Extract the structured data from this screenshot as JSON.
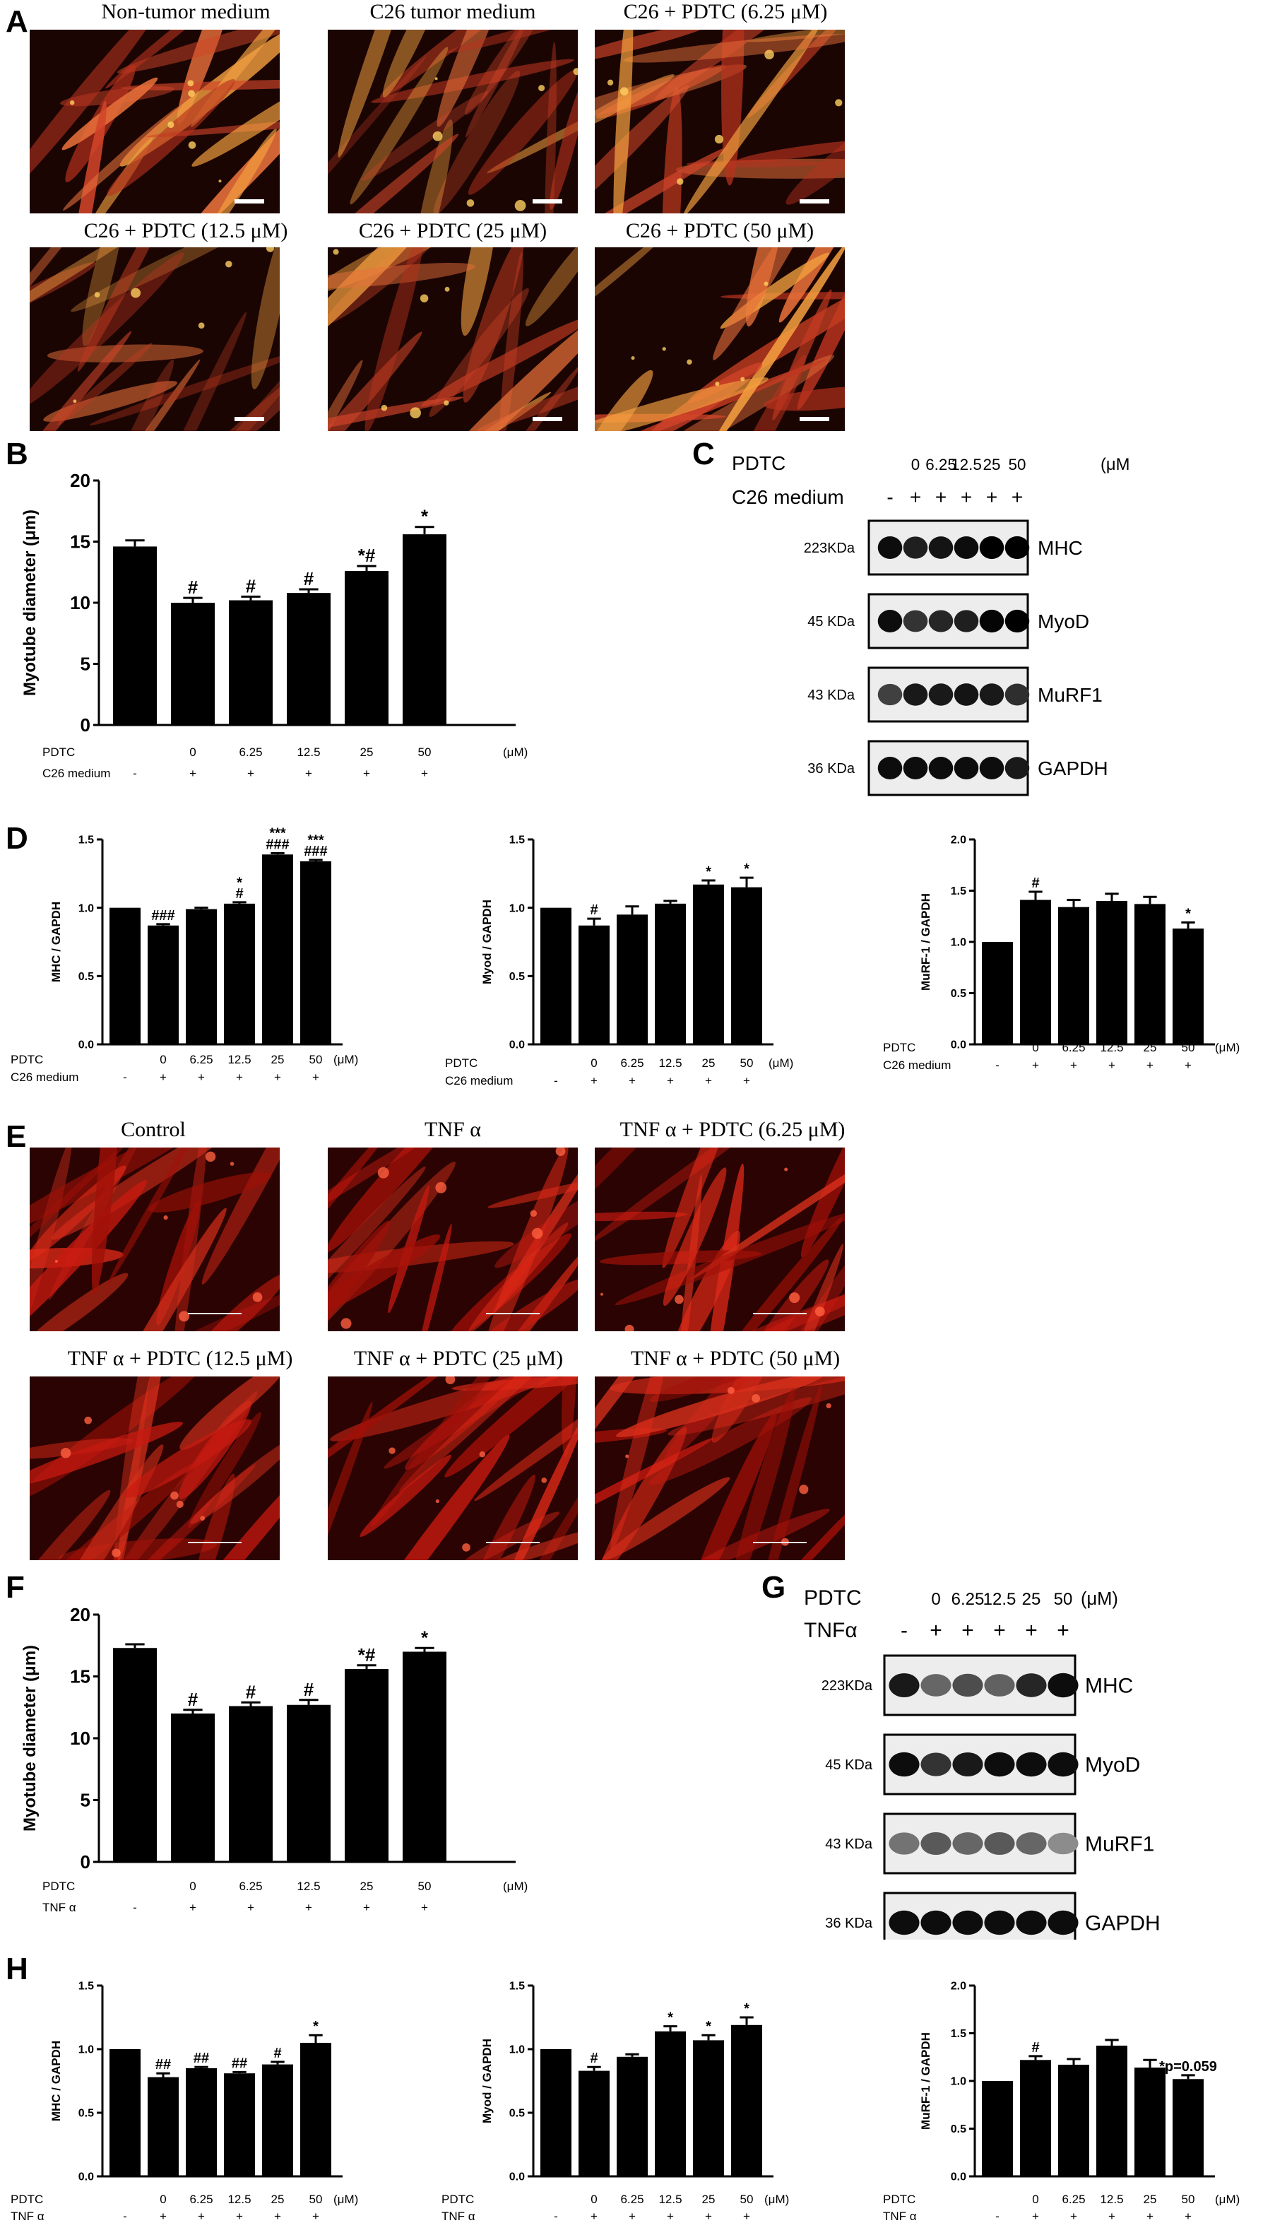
{
  "panels": {
    "A": "A",
    "B": "B",
    "C": "C",
    "D": "D",
    "E": "E",
    "F": "F",
    "G": "G",
    "H": "H"
  },
  "micrographs_A": [
    {
      "label": "Non-tumor  medium",
      "tone": "bright"
    },
    {
      "label": "C26 tumor medium",
      "tone": "dim"
    },
    {
      "label": "C26 + PDTC  (6.25 μM)",
      "tone": "mid"
    },
    {
      "label": "C26 + PDTC (12.5 μM)",
      "tone": "dim"
    },
    {
      "label": "C26 + PDTC (25 μM)",
      "tone": "mid"
    },
    {
      "label": "C26  + PDTC (50 μM)",
      "tone": "bright"
    }
  ],
  "micrographs_E": [
    {
      "label": "Control"
    },
    {
      "label": "TNF α"
    },
    {
      "label": "TNF α + PDTC (6.25 μM)"
    },
    {
      "label": "TNF α + PDTC (12.5 μM)"
    },
    {
      "label": "TNF α + PDTC (25 μM)"
    },
    {
      "label": "TNF α  + PDTC (50 μM)"
    }
  ],
  "colors": {
    "bar": "#000000",
    "micro_A_bg": "#1a0503",
    "micro_E_bg": "#2a0302"
  },
  "chart_data": [
    {
      "id": "B",
      "type": "bar",
      "ylabel": "Myotube diameter (μm)",
      "ylim": [
        0,
        20
      ],
      "yticks": [
        0,
        5,
        10,
        15,
        20
      ],
      "categories": [
        "-",
        "0",
        "6.25",
        "12.5",
        "25",
        "50"
      ],
      "values": [
        14.6,
        10.0,
        10.2,
        10.8,
        12.6,
        15.6
      ],
      "errors": [
        0.5,
        0.4,
        0.3,
        0.3,
        0.4,
        0.6
      ],
      "annotations": [
        "",
        "#",
        "#",
        "#",
        "*#",
        "*"
      ],
      "row1": {
        "label": "PDTC",
        "values": [
          "",
          "0",
          "6.25",
          "12.5",
          "25",
          "50"
        ],
        "unit": "(μM)"
      },
      "row2": {
        "label": "C26 medium",
        "values": [
          "-",
          "+",
          "+",
          "+",
          "+",
          "+"
        ]
      }
    },
    {
      "id": "D1",
      "type": "bar",
      "ylabel": "MHC / GAPDH",
      "ylim": [
        0,
        1.5
      ],
      "yticks": [
        0.0,
        0.5,
        1.0,
        1.5
      ],
      "categories": [
        "-",
        "0",
        "6.25",
        "12.5",
        "25",
        "50"
      ],
      "values": [
        1.0,
        0.87,
        0.99,
        1.03,
        1.39,
        1.34
      ],
      "errors": [
        0.0,
        0.01,
        0.01,
        0.01,
        0.01,
        0.01
      ],
      "annotations": [
        "",
        "###",
        "",
        "*\n#",
        "***\n###",
        "***\n###"
      ],
      "row1": {
        "label": "PDTC",
        "values": [
          "",
          "0",
          "6.25",
          "12.5",
          "25",
          "50"
        ],
        "unit": "(μM)"
      },
      "row2": {
        "label": "C26 medium",
        "values": [
          "-",
          "+",
          "+",
          "+",
          "+",
          "+"
        ]
      }
    },
    {
      "id": "D2",
      "type": "bar",
      "ylabel": "Myod / GAPDH",
      "ylim": [
        0,
        1.5
      ],
      "yticks": [
        0.0,
        0.5,
        1.0,
        1.5
      ],
      "categories": [
        "-",
        "0",
        "6.25",
        "12.5",
        "25",
        "50"
      ],
      "values": [
        1.0,
        0.87,
        0.95,
        1.03,
        1.17,
        1.15
      ],
      "errors": [
        0.0,
        0.05,
        0.06,
        0.02,
        0.03,
        0.07
      ],
      "annotations": [
        "",
        "#",
        "",
        "",
        "*",
        "*"
      ],
      "row1": {
        "label": "PDTC",
        "values": [
          "",
          "0",
          "6.25",
          "12.5",
          "25",
          "50"
        ],
        "unit": "(μM)"
      },
      "row2": {
        "label": "C26 medium",
        "values": [
          "-",
          "+",
          "+",
          "+",
          "+",
          "+"
        ]
      }
    },
    {
      "id": "D3",
      "type": "bar",
      "ylabel": "MuRF-1 / GAPDH",
      "ylim": [
        0,
        2.0
      ],
      "yticks": [
        0.0,
        0.5,
        1.0,
        1.5,
        2.0
      ],
      "categories": [
        "-",
        "0",
        "6.25",
        "12.5",
        "25",
        "50"
      ],
      "values": [
        1.0,
        1.41,
        1.34,
        1.4,
        1.37,
        1.13
      ],
      "errors": [
        0.0,
        0.08,
        0.07,
        0.07,
        0.07,
        0.06
      ],
      "annotations": [
        "",
        "#",
        "",
        "",
        "",
        "*"
      ],
      "row1": {
        "label": "PDTC",
        "values": [
          "",
          "0",
          "6.25",
          "12.5",
          "25",
          "50"
        ],
        "unit": "(μM)"
      },
      "row2": {
        "label": "C26 medium",
        "values": [
          "-",
          "+",
          "+",
          "+",
          "+",
          "+"
        ]
      }
    },
    {
      "id": "F",
      "type": "bar",
      "ylabel": "Myotube diameter (μm)",
      "ylim": [
        0,
        20
      ],
      "yticks": [
        0,
        5,
        10,
        15,
        20
      ],
      "categories": [
        "-",
        "0",
        "6.25",
        "12.5",
        "25",
        "50"
      ],
      "values": [
        17.3,
        12.0,
        12.6,
        12.7,
        15.6,
        17.0
      ],
      "errors": [
        0.3,
        0.3,
        0.3,
        0.4,
        0.3,
        0.3
      ],
      "annotations": [
        "",
        "#",
        "#",
        "#",
        "*#",
        "*"
      ],
      "row1": {
        "label": "PDTC",
        "values": [
          "",
          "0",
          "6.25",
          "12.5",
          "25",
          "50"
        ],
        "unit": "(μM)"
      },
      "row2": {
        "label": "TNF α",
        "values": [
          "-",
          "+",
          "+",
          "+",
          "+",
          "+"
        ]
      }
    },
    {
      "id": "H1",
      "type": "bar",
      "ylabel": "MHC / GAPDH",
      "ylim": [
        0,
        1.5
      ],
      "yticks": [
        0.0,
        0.5,
        1.0,
        1.5
      ],
      "categories": [
        "-",
        "0",
        "6.25",
        "12.5",
        "25",
        "50"
      ],
      "values": [
        1.0,
        0.78,
        0.85,
        0.81,
        0.88,
        1.05
      ],
      "errors": [
        0.0,
        0.03,
        0.01,
        0.01,
        0.02,
        0.06
      ],
      "annotations": [
        "",
        "##",
        "##",
        "##",
        "#",
        "*"
      ],
      "row1": {
        "label": "PDTC",
        "values": [
          "",
          "0",
          "6.25",
          "12.5",
          "25",
          "50"
        ],
        "unit": "(μM)"
      },
      "row2": {
        "label": "TNF α",
        "values": [
          "-",
          "+",
          "+",
          "+",
          "+",
          "+"
        ]
      }
    },
    {
      "id": "H2",
      "type": "bar",
      "ylabel": "Myod / GAPDH",
      "ylim": [
        0,
        1.5
      ],
      "yticks": [
        0.0,
        0.5,
        1.0,
        1.5
      ],
      "categories": [
        "-",
        "0",
        "6.25",
        "12.5",
        "25",
        "50"
      ],
      "values": [
        1.0,
        0.83,
        0.94,
        1.14,
        1.07,
        1.19
      ],
      "errors": [
        0.0,
        0.03,
        0.02,
        0.04,
        0.04,
        0.06
      ],
      "annotations": [
        "",
        "#",
        "",
        "*",
        "*",
        "*"
      ],
      "row1": {
        "label": "PDTC",
        "values": [
          "",
          "0",
          "6.25",
          "12.5",
          "25",
          "50"
        ],
        "unit": "(μM)"
      },
      "row2": {
        "label": "TNF α",
        "values": [
          "-",
          "+",
          "+",
          "+",
          "+",
          "+"
        ]
      }
    },
    {
      "id": "H3",
      "type": "bar",
      "ylabel": "MuRF-1 / GAPDH",
      "ylim": [
        0,
        2.0
      ],
      "yticks": [
        0.0,
        0.5,
        1.0,
        1.5,
        2.0
      ],
      "categories": [
        "-",
        "0",
        "6.25",
        "12.5",
        "25",
        "50"
      ],
      "values": [
        1.0,
        1.22,
        1.17,
        1.37,
        1.14,
        1.02
      ],
      "errors": [
        0.0,
        0.04,
        0.06,
        0.06,
        0.08,
        0.04
      ],
      "annotations": [
        "",
        "#",
        "",
        "",
        "",
        "*p=0.059"
      ],
      "row1": {
        "label": "PDTC",
        "values": [
          "",
          "0",
          "6.25",
          "12.5",
          "25",
          "50"
        ],
        "unit": "(μM)"
      },
      "row2": {
        "label": "TNF α",
        "values": [
          "-",
          "+",
          "+",
          "+",
          "+",
          "+"
        ]
      }
    }
  ],
  "western_C": {
    "row1_label": "PDTC",
    "row1_values": [
      "",
      "0",
      "6.25",
      "12.5",
      "25",
      "50"
    ],
    "row1_unit": "(μM)",
    "row2_label": "C26 medium",
    "row2_values": [
      "-",
      "+",
      "+",
      "+",
      "+",
      "+"
    ],
    "blots": [
      {
        "size": "223KDa",
        "protein": "MHC",
        "intensity": [
          0.95,
          0.88,
          0.92,
          0.95,
          1.0,
          1.0
        ]
      },
      {
        "size": "45 KDa",
        "protein": "MyoD",
        "intensity": [
          0.95,
          0.8,
          0.85,
          0.88,
          0.98,
          1.0
        ]
      },
      {
        "size": "43 KDa",
        "protein": "MuRF1",
        "intensity": [
          0.75,
          0.9,
          0.9,
          0.92,
          0.9,
          0.82
        ]
      },
      {
        "size": "36 KDa",
        "protein": "GAPDH",
        "intensity": [
          0.95,
          0.95,
          0.95,
          0.95,
          0.95,
          0.9
        ]
      }
    ]
  },
  "western_G": {
    "row1_label": "PDTC",
    "row1_values": [
      "",
      "0",
      "6.25",
      "12.5",
      "25",
      "50"
    ],
    "row1_unit": "(μM)",
    "row2_label": "TNFα",
    "row2_values": [
      "-",
      "+",
      "+",
      "+",
      "+",
      "+"
    ],
    "blots": [
      {
        "size": "223KDa",
        "protein": "MHC",
        "intensity": [
          0.9,
          0.6,
          0.7,
          0.62,
          0.85,
          0.95
        ]
      },
      {
        "size": "45 KDa",
        "protein": "MyoD",
        "intensity": [
          0.95,
          0.8,
          0.9,
          0.95,
          0.95,
          0.95
        ]
      },
      {
        "size": "43 KDa",
        "protein": "MuRF1",
        "intensity": [
          0.55,
          0.65,
          0.6,
          0.65,
          0.6,
          0.45
        ]
      },
      {
        "size": "36 KDa",
        "protein": "GAPDH",
        "intensity": [
          0.95,
          0.95,
          0.95,
          0.95,
          0.95,
          0.95
        ]
      }
    ]
  }
}
